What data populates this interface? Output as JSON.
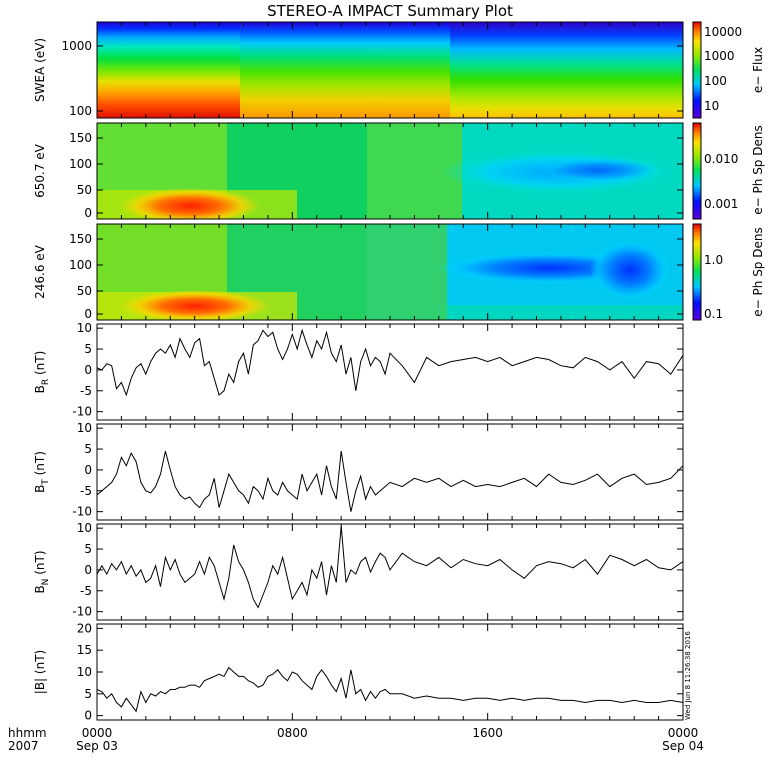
{
  "chart_data": {
    "title": "STEREO-A IMPACT Summary Plot",
    "type": "multi-panel",
    "x_axis": {
      "range_hours": [
        0,
        24
      ],
      "ticks": [
        {
          "hours": 0,
          "top": "0000",
          "bottom": "Sep 03"
        },
        {
          "hours": 8,
          "top": "0800",
          "bottom": ""
        },
        {
          "hours": 16,
          "top": "1600",
          "bottom": ""
        },
        {
          "hours": 24,
          "top": "0000",
          "bottom": "Sep 04"
        }
      ],
      "left_label_top": "hhmm",
      "left_label_bottom": "2007"
    },
    "stamp": "Wed Jun  8 11:26:38 2016",
    "panels": [
      {
        "id": "swea",
        "type": "heatmap",
        "ylabel": "SWEA (eV)",
        "yscale": "log",
        "ylim": [
          90,
          2000
        ],
        "yticks": [
          "100",
          "1000"
        ],
        "colorbar": {
          "label": "e− Flux",
          "scale": "log",
          "ticks": [
            "10000",
            "1000",
            "100",
            "10"
          ]
        }
      },
      {
        "id": "pad650",
        "type": "heatmap",
        "ylabel": "650.7 eV",
        "ylim": [
          -10,
          180
        ],
        "yticks": [
          "0",
          "50",
          "100",
          "150"
        ],
        "colorbar": {
          "label": "e− Ph Sp Dens",
          "scale": "log",
          "ticks": [
            "0.010",
            "0.001"
          ]
        }
      },
      {
        "id": "pad246",
        "type": "heatmap",
        "ylabel": "246.6 eV",
        "ylim": [
          -10,
          180
        ],
        "yticks": [
          "0",
          "50",
          "100",
          "150"
        ],
        "colorbar": {
          "label": "e− Ph Sp Dens",
          "scale": "log",
          "ticks": [
            "1.0",
            "0.1"
          ]
        }
      },
      {
        "id": "br",
        "type": "line",
        "ylabel": "B",
        "ylabel_sub": "R",
        "ylabel_unit": "(nT)",
        "ylim": [
          -12,
          11
        ],
        "yticks": [
          "10",
          "5",
          "0",
          "-5",
          "-10"
        ],
        "x": [
          0,
          0.2,
          0.4,
          0.6,
          0.8,
          1.0,
          1.2,
          1.4,
          1.6,
          1.8,
          2.0,
          2.2,
          2.4,
          2.6,
          2.8,
          3.0,
          3.2,
          3.4,
          3.6,
          3.8,
          4.0,
          4.2,
          4.4,
          4.6,
          4.8,
          5.0,
          5.2,
          5.4,
          5.6,
          5.8,
          6.0,
          6.2,
          6.4,
          6.6,
          6.8,
          7.0,
          7.2,
          7.4,
          7.6,
          7.8,
          8.0,
          8.2,
          8.4,
          8.6,
          8.8,
          9.0,
          9.2,
          9.4,
          9.6,
          9.8,
          10.0,
          10.2,
          10.4,
          10.6,
          10.8,
          11.0,
          11.2,
          11.4,
          11.6,
          11.8,
          12.0,
          12.5,
          13.0,
          13.5,
          14.0,
          14.5,
          15.0,
          15.5,
          16.0,
          16.5,
          17.0,
          17.5,
          18.0,
          18.5,
          19.0,
          19.5,
          20.0,
          20.5,
          21.0,
          21.5,
          22.0,
          22.5,
          23.0,
          23.5,
          24.0
        ],
        "values": [
          0.5,
          0,
          1.5,
          1.0,
          -4.5,
          -3.0,
          -6.0,
          -2.0,
          0.5,
          1.5,
          -1.0,
          2.0,
          4.0,
          5.0,
          4.0,
          6.0,
          3.0,
          7.5,
          5.0,
          3.0,
          6.5,
          7.5,
          1.0,
          2.0,
          -2.0,
          -6.0,
          -5.0,
          -1.0,
          -3.0,
          2.0,
          4.0,
          -1.0,
          6.0,
          7.0,
          9.5,
          8.0,
          9.0,
          5.0,
          2.5,
          5.0,
          8.5,
          5.0,
          9.5,
          6.0,
          3.0,
          7.0,
          5.0,
          9.0,
          4.0,
          2.0,
          6.0,
          -1.0,
          3.0,
          -5.0,
          2.0,
          5.0,
          1.0,
          3.0,
          2.0,
          -1.0,
          4.0,
          1.0,
          -3.0,
          3.0,
          1.0,
          2.0,
          2.5,
          3.0,
          2.0,
          3.0,
          1.0,
          2.0,
          3.0,
          2.5,
          1.0,
          0.5,
          3.0,
          2.0,
          0.0,
          2.0,
          -2.0,
          2.0,
          1.5,
          -1.0,
          3.5
        ]
      },
      {
        "id": "bt",
        "type": "line",
        "ylabel": "B",
        "ylabel_sub": "T",
        "ylabel_unit": "(nT)",
        "ylim": [
          -12,
          11
        ],
        "yticks": [
          "10",
          "5",
          "0",
          "-5",
          "-10"
        ],
        "x": [
          0,
          0.2,
          0.4,
          0.6,
          0.8,
          1.0,
          1.2,
          1.4,
          1.6,
          1.8,
          2.0,
          2.2,
          2.4,
          2.6,
          2.8,
          3.0,
          3.2,
          3.4,
          3.6,
          3.8,
          4.0,
          4.2,
          4.4,
          4.6,
          4.8,
          5.0,
          5.2,
          5.4,
          5.6,
          5.8,
          6.0,
          6.2,
          6.4,
          6.6,
          6.8,
          7.0,
          7.2,
          7.4,
          7.6,
          7.8,
          8.0,
          8.2,
          8.4,
          8.6,
          8.8,
          9.0,
          9.2,
          9.4,
          9.6,
          9.8,
          10.0,
          10.2,
          10.4,
          10.6,
          10.8,
          11.0,
          11.2,
          11.4,
          11.6,
          11.8,
          12.0,
          12.5,
          13.0,
          13.5,
          14.0,
          14.5,
          15.0,
          15.5,
          16.0,
          16.5,
          17.0,
          17.5,
          18.0,
          18.5,
          19.0,
          19.5,
          20.0,
          20.5,
          21.0,
          21.5,
          22.0,
          22.5,
          23.0,
          23.5,
          24.0
        ],
        "values": [
          -6.0,
          -5.0,
          -4.0,
          -3.0,
          -1.0,
          3.0,
          1.0,
          4.0,
          2.0,
          -3.0,
          -5.0,
          -5.5,
          -4.0,
          -1.0,
          4.5,
          0,
          -4.0,
          -6.0,
          -7.0,
          -6.5,
          -8.0,
          -9.0,
          -7.0,
          -6.0,
          -2.0,
          -9.0,
          -5.0,
          -1.0,
          -3.0,
          -5.0,
          -6.0,
          -8.0,
          -4.0,
          -5.0,
          -7.0,
          -2.0,
          -5.0,
          -6.0,
          -3.0,
          -5.0,
          -6.0,
          -7.0,
          -1.0,
          -5.0,
          -3.0,
          -1.0,
          -6.0,
          1.0,
          -4.0,
          -7.0,
          4.5,
          -3.0,
          -10.0,
          -5.0,
          -1.5,
          -7.0,
          -4.0,
          -6.0,
          -5.0,
          -4.0,
          -3.0,
          -4.0,
          -2.0,
          -3.0,
          -2.0,
          -4.0,
          -2.5,
          -4.0,
          -3.5,
          -4.0,
          -3.0,
          -2.0,
          -4.0,
          -1.0,
          -3.0,
          -3.5,
          -2.5,
          -1.0,
          -4.0,
          -2.0,
          -1.0,
          -3.5,
          -3.0,
          -2.0,
          1.0
        ]
      },
      {
        "id": "bn",
        "type": "line",
        "ylabel": "B",
        "ylabel_sub": "N",
        "ylabel_unit": "(nT)",
        "ylim": [
          -12,
          11
        ],
        "yticks": [
          "10",
          "5",
          "0",
          "-5",
          "-10"
        ],
        "x": [
          0,
          0.2,
          0.4,
          0.6,
          0.8,
          1.0,
          1.2,
          1.4,
          1.6,
          1.8,
          2.0,
          2.2,
          2.4,
          2.6,
          2.8,
          3.0,
          3.2,
          3.4,
          3.6,
          3.8,
          4.0,
          4.2,
          4.4,
          4.6,
          4.8,
          5.0,
          5.2,
          5.4,
          5.6,
          5.8,
          6.0,
          6.2,
          6.4,
          6.6,
          6.8,
          7.0,
          7.2,
          7.4,
          7.6,
          7.8,
          8.0,
          8.2,
          8.4,
          8.6,
          8.8,
          9.0,
          9.2,
          9.4,
          9.6,
          9.8,
          10.0,
          10.2,
          10.4,
          10.6,
          10.8,
          11.0,
          11.2,
          11.4,
          11.6,
          11.8,
          12.0,
          12.5,
          13.0,
          13.5,
          14.0,
          14.5,
          15.0,
          15.5,
          16.0,
          16.5,
          17.0,
          17.5,
          18.0,
          18.5,
          19.0,
          19.5,
          20.0,
          20.5,
          21.0,
          21.5,
          22.0,
          22.5,
          23.0,
          23.5,
          24.0
        ],
        "values": [
          -1.0,
          1.0,
          -1.0,
          1.5,
          0,
          2.0,
          -1.0,
          1.0,
          -1.5,
          0,
          -3.0,
          -2.0,
          1.0,
          -4.0,
          3.0,
          0,
          2.5,
          -1.0,
          -3.0,
          -2.0,
          -1.0,
          2.0,
          -1.0,
          3.0,
          1.0,
          -3.0,
          -7.0,
          -2.0,
          6.0,
          2.0,
          0,
          -3.0,
          -7.0,
          -9.0,
          -6.0,
          -3.0,
          1.0,
          -1.0,
          3.0,
          -2.0,
          -7.0,
          -5.0,
          -3.0,
          -6.0,
          0,
          -2.0,
          2.0,
          -6.0,
          1.0,
          -3.0,
          10.5,
          -3.0,
          0,
          -1.0,
          2.0,
          3.0,
          -0.5,
          2.0,
          4.0,
          3.0,
          0,
          4.0,
          2.0,
          1.0,
          3.0,
          0.5,
          2.5,
          1.5,
          1.0,
          2.5,
          0,
          -2.0,
          1.0,
          2.0,
          1.5,
          0.5,
          2.5,
          -1.0,
          3.5,
          2.5,
          1.0,
          2.5,
          0.5,
          0,
          2.0
        ]
      },
      {
        "id": "bmag",
        "type": "line",
        "ylabel": "|B|",
        "ylabel_unit": "(nT)",
        "ylim": [
          -1,
          21
        ],
        "yticks": [
          "20",
          "15",
          "10",
          "5",
          "0"
        ],
        "x": [
          0,
          0.2,
          0.4,
          0.6,
          0.8,
          1.0,
          1.2,
          1.4,
          1.6,
          1.8,
          2.0,
          2.2,
          2.4,
          2.6,
          2.8,
          3.0,
          3.2,
          3.4,
          3.6,
          3.8,
          4.0,
          4.2,
          4.4,
          4.6,
          4.8,
          5.0,
          5.2,
          5.4,
          5.6,
          5.8,
          6.0,
          6.2,
          6.4,
          6.6,
          6.8,
          7.0,
          7.2,
          7.4,
          7.6,
          7.8,
          8.0,
          8.2,
          8.4,
          8.6,
          8.8,
          9.0,
          9.2,
          9.4,
          9.6,
          9.8,
          10.0,
          10.2,
          10.4,
          10.6,
          10.8,
          11.0,
          11.2,
          11.4,
          11.6,
          11.8,
          12.0,
          12.5,
          13.0,
          13.5,
          14.0,
          14.5,
          15.0,
          15.5,
          16.0,
          16.5,
          17.0,
          17.5,
          18.0,
          18.5,
          19.0,
          19.5,
          20.0,
          20.5,
          21.0,
          21.5,
          22.0,
          22.5,
          23.0,
          23.5,
          24.0
        ],
        "values": [
          6.0,
          5.5,
          4.0,
          5.0,
          3.0,
          2.0,
          4.0,
          2.5,
          1.0,
          5.5,
          3.0,
          5.0,
          4.5,
          5.5,
          5.0,
          6.0,
          6.0,
          6.5,
          6.5,
          7.0,
          7.0,
          6.5,
          8.0,
          8.5,
          9.0,
          9.5,
          9.0,
          11.0,
          10.0,
          9.0,
          9.0,
          8.0,
          7.5,
          6.5,
          7.0,
          9.0,
          9.5,
          10.5,
          9.0,
          8.0,
          10.0,
          9.5,
          8.0,
          7.0,
          6.0,
          9.0,
          10.5,
          9.0,
          7.0,
          5.5,
          8.5,
          4.0,
          10.5,
          5.0,
          6.0,
          3.5,
          5.5,
          4.0,
          5.5,
          6.0,
          5.0,
          5.0,
          4.0,
          4.5,
          4.0,
          4.0,
          3.5,
          4.0,
          4.0,
          3.5,
          4.0,
          3.5,
          4.0,
          4.0,
          3.5,
          3.5,
          3.0,
          3.5,
          3.5,
          3.0,
          3.5,
          3.0,
          3.0,
          3.5,
          3.0
        ]
      }
    ]
  }
}
